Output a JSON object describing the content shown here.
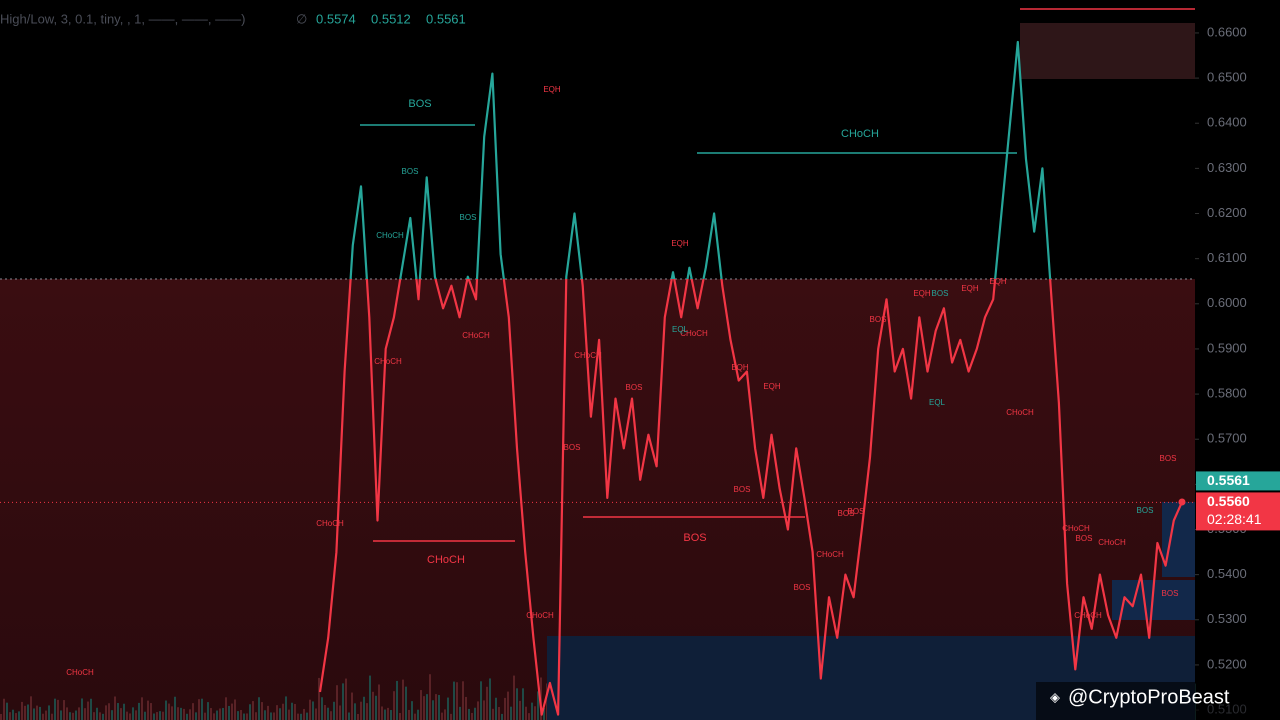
{
  "header": {
    "indicator": "High/Low, 3, 0.1, tiny, , 1, ——, ——, ——)",
    "symbol": "∅",
    "values": [
      "0.5574",
      "0.5512",
      "0.5561"
    ]
  },
  "chart_data": {
    "type": "line",
    "series": [
      {
        "name": "Price",
        "color": "#f23645",
        "upper_color": "#26a69a",
        "values": [
          0.514,
          0.526,
          0.545,
          0.585,
          0.613,
          0.626,
          0.597,
          0.552,
          0.59,
          0.597,
          0.608,
          0.619,
          0.601,
          0.628,
          0.606,
          0.599,
          0.604,
          0.597,
          0.606,
          0.601,
          0.637,
          0.651,
          0.611,
          0.597,
          0.568,
          0.545,
          0.526,
          0.509,
          0.516,
          0.509,
          0.606,
          0.62,
          0.604,
          0.575,
          0.592,
          0.557,
          0.579,
          0.568,
          0.579,
          0.561,
          0.571,
          0.564,
          0.597,
          0.607,
          0.597,
          0.608,
          0.599,
          0.608,
          0.62,
          0.604,
          0.592,
          0.583,
          0.585,
          0.568,
          0.557,
          0.571,
          0.559,
          0.55,
          0.568,
          0.557,
          0.545,
          0.517,
          0.535,
          0.526,
          0.54,
          0.535,
          0.55,
          0.566,
          0.59,
          0.601,
          0.585,
          0.59,
          0.579,
          0.597,
          0.585,
          0.594,
          0.599,
          0.587,
          0.592,
          0.585,
          0.59,
          0.597,
          0.601,
          0.62,
          0.639,
          0.658,
          0.632,
          0.616,
          0.63,
          0.604,
          0.578,
          0.538,
          0.519,
          0.535,
          0.528,
          0.54,
          0.531,
          0.526,
          0.535,
          0.533,
          0.54,
          0.526,
          0.547,
          0.542,
          0.552,
          0.5561
        ]
      }
    ],
    "zone_level": 0.6055,
    "ylim": [
      0.5078,
      0.6673
    ],
    "yticks": [
      {
        "value": 0.51,
        "label": "0.5100"
      },
      {
        "value": 0.52,
        "label": "0.5200"
      },
      {
        "value": 0.53,
        "label": "0.5300"
      },
      {
        "value": 0.54,
        "label": "0.5400"
      },
      {
        "value": 0.55,
        "label": "0.5500"
      },
      {
        "value": 0.56,
        "label": "0.5600"
      },
      {
        "value": 0.57,
        "label": "0.5700"
      },
      {
        "value": 0.58,
        "label": "0.5800"
      },
      {
        "value": 0.59,
        "label": "0.5900"
      },
      {
        "value": 0.6,
        "label": "0.6000"
      },
      {
        "value": 0.61,
        "label": "0.6100"
      },
      {
        "value": 0.62,
        "label": "0.6200"
      },
      {
        "value": 0.63,
        "label": "0.6300"
      },
      {
        "value": 0.64,
        "label": "0.6400"
      },
      {
        "value": 0.65,
        "label": "0.6500"
      },
      {
        "value": 0.66,
        "label": "0.6600"
      }
    ],
    "price_lines": [
      {
        "value": 0.5561,
        "label": "0.5561",
        "color": "#26a69a"
      },
      {
        "value": 0.556,
        "label": "0.5560",
        "color": "#f23645"
      }
    ],
    "countdown": "02:28:41",
    "structure_labels": [
      "BOS",
      "CHoCH",
      "CHoCH",
      "BOS"
    ],
    "annotations": [
      "BOS",
      "CHoCH",
      "BOS",
      "CHoCH",
      "CHoCH",
      "EQH",
      "EQH",
      "CHoCH",
      "CHoCH",
      "BOS",
      "BOS",
      "BOS",
      "EQL",
      "CHoCH",
      "EQH",
      "EQH",
      "BOS",
      "BOS",
      "BOS",
      "CHoCH",
      "BOS",
      "BOS",
      "EQH",
      "BOS",
      "EQH",
      "EQH",
      "BOS",
      "EQL",
      "CHoCH",
      "CHoCH",
      "CHoCH",
      "CHoCH",
      "BOS",
      "BOS",
      "CHoCH",
      "CHoCH"
    ],
    "watermark": "@CryptoProBeast"
  }
}
